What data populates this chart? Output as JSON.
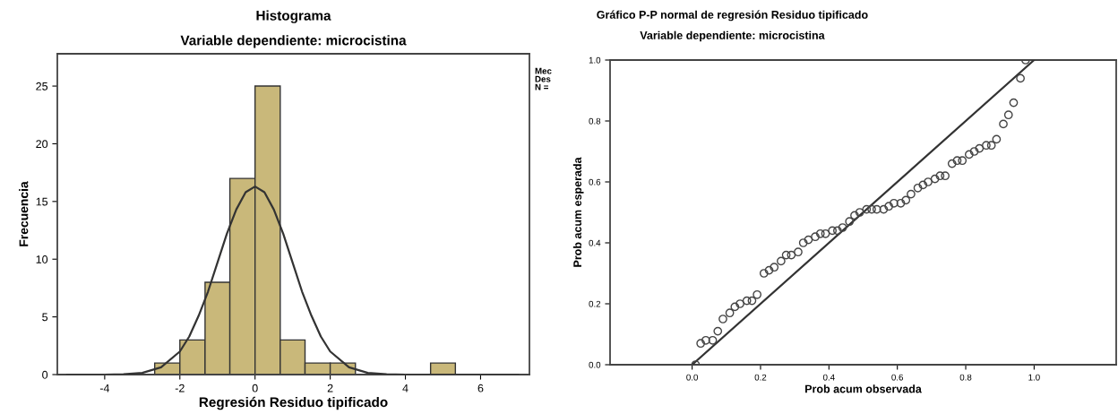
{
  "chart_data": [
    {
      "type": "histogram",
      "title": "Histograma",
      "subtitle": "Variable dependiente: microcistina",
      "xlabel": "Regresión Residuo tipificado",
      "ylabel": "Frecuencia",
      "series": [
        {
          "color": "#c9b87a",
          "bins": [
            -2.67,
            -2,
            -1.33,
            -0.67,
            0,
            0.67,
            1.33,
            2,
            2.67,
            3.33,
            4,
            4.67,
            5.33
          ],
          "values": [
            1,
            3,
            8,
            17,
            25,
            3,
            1,
            1,
            0,
            0,
            0,
            1
          ]
        },
        {
          "type": "line",
          "color": "#333333",
          "x": [
            -5,
            -4,
            -3.5,
            -3,
            -2.5,
            -2,
            -1.75,
            -1.5,
            -1.25,
            -1,
            -0.75,
            -0.5,
            -0.25,
            0,
            0.25,
            0.5,
            0.75,
            1,
            1.25,
            1.5,
            1.75,
            2,
            2.5,
            3,
            3.5,
            4,
            5,
            7
          ],
          "values": [
            0,
            0,
            0.03,
            0.15,
            0.63,
            2.0,
            3.3,
            5.1,
            7.2,
            9.7,
            12.2,
            14.3,
            15.8,
            16.3,
            15.8,
            14.3,
            12.2,
            9.7,
            7.2,
            5.1,
            3.3,
            2.0,
            0.63,
            0.15,
            0.03,
            0,
            0,
            0
          ]
        }
      ],
      "xlim": [
        -5.26,
        7.3
      ],
      "xticks": [
        -4,
        -2,
        0,
        2,
        4,
        6
      ],
      "ylim": [
        0,
        27.8
      ],
      "yticks": [
        0,
        5,
        10,
        15,
        20,
        25
      ],
      "grid": false,
      "legend": false,
      "annotations": [
        "Mec",
        "Des",
        "N ="
      ]
    },
    {
      "type": "scatter",
      "title": "Gráfico P-P normal de regresión Residuo tipificado",
      "subtitle": "Variable dependiente: microcistina",
      "xlabel": "Prob acum observada",
      "ylabel": "Prob acum esperada",
      "series": [
        {
          "color": "#444444",
          "marker": "circle",
          "x": [
            0.01,
            0.025,
            0.04,
            0.06,
            0.075,
            0.09,
            0.11,
            0.125,
            0.14,
            0.16,
            0.175,
            0.19,
            0.21,
            0.225,
            0.24,
            0.26,
            0.275,
            0.29,
            0.31,
            0.325,
            0.34,
            0.36,
            0.375,
            0.39,
            0.41,
            0.425,
            0.44,
            0.46,
            0.475,
            0.49,
            0.51,
            0.525,
            0.54,
            0.56,
            0.575,
            0.59,
            0.61,
            0.625,
            0.64,
            0.66,
            0.675,
            0.69,
            0.71,
            0.725,
            0.74,
            0.76,
            0.775,
            0.79,
            0.81,
            0.825,
            0.84,
            0.86,
            0.875,
            0.89,
            0.91,
            0.925,
            0.94,
            0.96,
            0.975
          ],
          "values": [
            0.0,
            0.07,
            0.08,
            0.08,
            0.11,
            0.15,
            0.17,
            0.19,
            0.2,
            0.21,
            0.21,
            0.23,
            0.3,
            0.31,
            0.32,
            0.34,
            0.36,
            0.36,
            0.37,
            0.4,
            0.41,
            0.42,
            0.43,
            0.43,
            0.44,
            0.44,
            0.45,
            0.47,
            0.49,
            0.5,
            0.51,
            0.51,
            0.51,
            0.51,
            0.52,
            0.53,
            0.53,
            0.54,
            0.56,
            0.58,
            0.59,
            0.6,
            0.61,
            0.62,
            0.62,
            0.66,
            0.67,
            0.67,
            0.69,
            0.7,
            0.71,
            0.72,
            0.72,
            0.74,
            0.79,
            0.82,
            0.86,
            0.94,
            1.0
          ]
        },
        {
          "type": "line",
          "color": "#333333",
          "x": [
            0,
            1
          ],
          "values": [
            0,
            1
          ]
        }
      ],
      "xlim": [
        -0.24,
        1.24
      ],
      "xticks": [
        {
          "value": 0,
          "label": "0.0"
        },
        0.2,
        0.4,
        0.6,
        0.8,
        {
          "value": 1,
          "label": "1.0"
        }
      ],
      "ylim": [
        0,
        1
      ],
      "yticks": [
        {
          "value": 0,
          "label": "0.0"
        },
        0.2,
        0.4,
        0.6,
        0.8,
        {
          "value": 1,
          "label": "1.0"
        }
      ],
      "grid": false,
      "legend": false
    }
  ]
}
